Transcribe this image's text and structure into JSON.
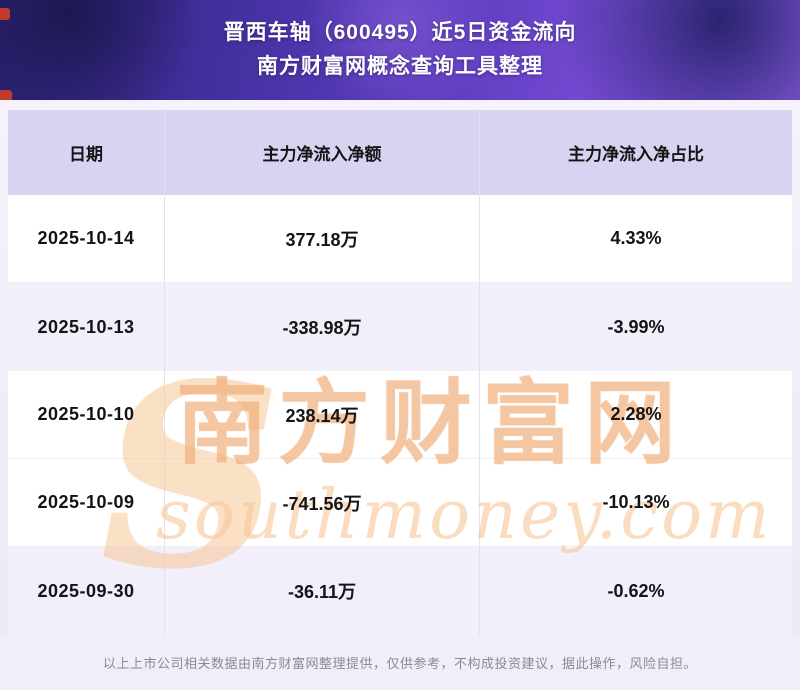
{
  "header": {
    "title_line1": "晋西车轴（600495）近5日资金流向",
    "title_line2": "南方财富网概念查询工具整理"
  },
  "chart_data": {
    "type": "table",
    "title": "晋西车轴（600495）近5日资金流向",
    "subtitle": "南方财富网概念查询工具整理",
    "columns": [
      "日期",
      "主力净流入净额",
      "主力净流入净占比"
    ],
    "rows": [
      [
        "2025-10-14",
        "377.18万",
        "4.33%"
      ],
      [
        "2025-10-13",
        "-338.98万",
        "-3.99%"
      ],
      [
        "2025-10-10",
        "238.14万",
        "2.28%"
      ],
      [
        "2025-10-09",
        "-741.56万",
        "-10.13%"
      ],
      [
        "2025-09-30",
        "-36.11万",
        "-0.62%"
      ]
    ]
  },
  "watermark": {
    "swoosh": "S",
    "brand_cn": "南方财富网",
    "brand_en": "southmoney.com"
  },
  "footer": {
    "text": "以上上市公司相关数据由南方财富网整理提供，仅供参考，不构成投资建议，据此操作，风险自担。"
  },
  "colors": {
    "banner_gradient_start": "#2b2272",
    "banner_gradient_end": "#8e5fe0",
    "header_row_bg": "#d9d2f0",
    "alt_row_bg": "#f2eefa",
    "watermark_orange": "#f2b684",
    "footer_bg": "#f2eef9"
  }
}
